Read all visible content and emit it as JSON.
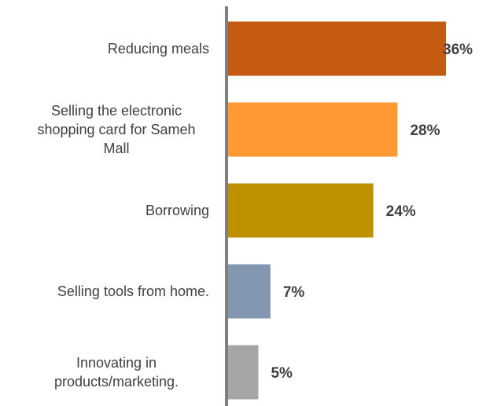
{
  "chart_data": {
    "type": "bar",
    "orientation": "horizontal",
    "categories": [
      [
        "Reducing meals"
      ],
      [
        "Selling the electronic",
        "shopping card for Sameh",
        "Mall"
      ],
      [
        "Borrowing"
      ],
      [
        "Selling tools from home."
      ],
      [
        "Innovating in",
        "products/marketing."
      ]
    ],
    "values": [
      36,
      28,
      24,
      7,
      5
    ],
    "value_labels": [
      "36%",
      "28%",
      "24%",
      "7%",
      "5%"
    ],
    "colors": [
      "#C55A11",
      "#FF9933",
      "#BF9000",
      "#8497B0",
      "#A5A5A5"
    ],
    "axis_color": "#7F7F7F",
    "xlim": [
      0,
      36
    ],
    "grid": false,
    "legend": false
  }
}
